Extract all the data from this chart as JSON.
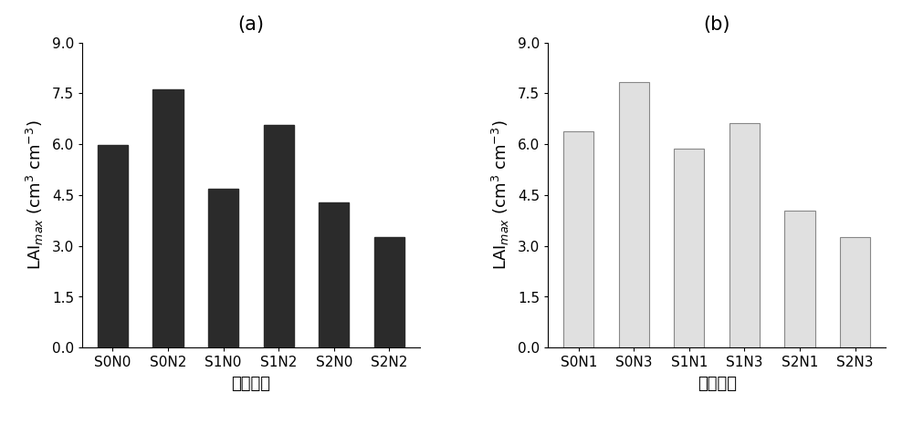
{
  "chart_a": {
    "title": "(a)",
    "categories": [
      "S0N0",
      "S0N2",
      "S1N0",
      "S1N2",
      "S2N0",
      "S2N2"
    ],
    "values": [
      5.97,
      7.62,
      4.68,
      6.58,
      4.28,
      3.27
    ],
    "bar_color": "#2b2b2b",
    "xlabel": "实验处理",
    "ylabel": "LAI$_{max}$ (cm$^{3}$ cm$^{-3}$)"
  },
  "chart_b": {
    "title": "(b)",
    "categories": [
      "S0N1",
      "S0N3",
      "S1N1",
      "S1N3",
      "S2N1",
      "S2N3"
    ],
    "values": [
      6.38,
      7.82,
      5.88,
      6.62,
      4.05,
      3.27
    ],
    "bar_color": "#e0e0e0",
    "bar_edge_color": "#888888",
    "xlabel": "实验处理",
    "ylabel": "LAI$_{max}$ (cm$^{3}$ cm$^{-3}$)"
  },
  "ylim": [
    0,
    9.0
  ],
  "yticks": [
    0.0,
    1.5,
    3.0,
    4.5,
    6.0,
    7.5,
    9.0
  ],
  "background_color": "#ffffff",
  "title_fontsize": 15,
  "label_fontsize": 13,
  "tick_fontsize": 11,
  "bar_width": 0.55
}
